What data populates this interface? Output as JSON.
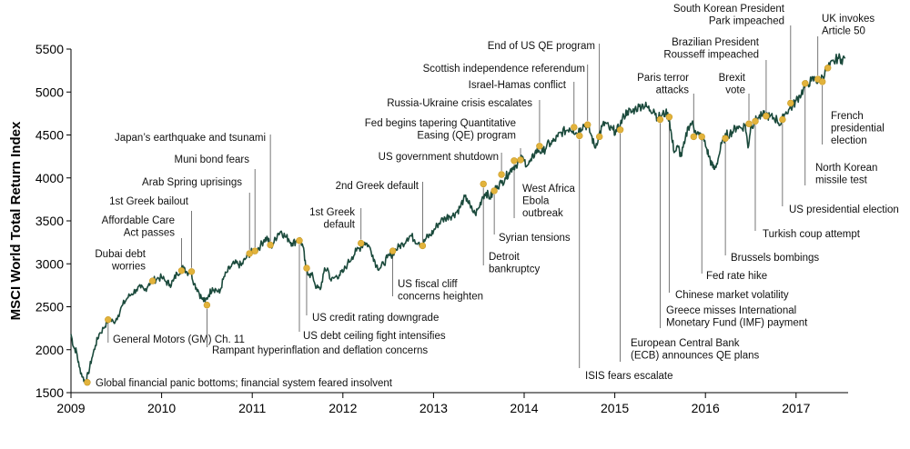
{
  "chart_data": {
    "type": "line",
    "title": "",
    "xlabel": "",
    "ylabel": "MSCI World Total Return Index",
    "xlim": [
      2009,
      2017.62
    ],
    "ylim": [
      1500,
      5500
    ],
    "x_ticks": [
      "2009",
      "2010",
      "2011",
      "2012",
      "2013",
      "2014",
      "2015",
      "2016",
      "2017"
    ],
    "y_ticks": [
      1500,
      2000,
      2500,
      3000,
      3500,
      4000,
      4500,
      5000,
      5500
    ],
    "grid": false,
    "colors": {
      "line": "#1b4a3c",
      "event_marker": "#e2b33c",
      "leader": "#555555"
    },
    "series": [
      {
        "name": "",
        "points": [
          [
            2009.0,
            2180
          ],
          [
            2009.03,
            2030
          ],
          [
            2009.06,
            1980
          ],
          [
            2009.09,
            1800
          ],
          [
            2009.13,
            1680
          ],
          [
            2009.16,
            1620
          ],
          [
            2009.19,
            1720
          ],
          [
            2009.23,
            1900
          ],
          [
            2009.27,
            2050
          ],
          [
            2009.31,
            2180
          ],
          [
            2009.36,
            2250
          ],
          [
            2009.4,
            2330
          ],
          [
            2009.43,
            2350
          ],
          [
            2009.47,
            2320
          ],
          [
            2009.52,
            2400
          ],
          [
            2009.57,
            2520
          ],
          [
            2009.62,
            2600
          ],
          [
            2009.67,
            2650
          ],
          [
            2009.72,
            2700
          ],
          [
            2009.77,
            2720
          ],
          [
            2009.81,
            2690
          ],
          [
            2009.86,
            2770
          ],
          [
            2009.9,
            2800
          ],
          [
            2009.95,
            2830
          ],
          [
            2010.0,
            2840
          ],
          [
            2010.05,
            2790
          ],
          [
            2010.09,
            2760
          ],
          [
            2010.13,
            2800
          ],
          [
            2010.17,
            2890
          ],
          [
            2010.21,
            2930
          ],
          [
            2010.25,
            2960
          ],
          [
            2010.28,
            2900
          ],
          [
            2010.32,
            2920
          ],
          [
            2010.36,
            2770
          ],
          [
            2010.4,
            2700
          ],
          [
            2010.44,
            2600
          ],
          [
            2010.48,
            2560
          ],
          [
            2010.52,
            2640
          ],
          [
            2010.56,
            2720
          ],
          [
            2010.6,
            2700
          ],
          [
            2010.64,
            2660
          ],
          [
            2010.68,
            2820
          ],
          [
            2010.72,
            2900
          ],
          [
            2010.76,
            2960
          ],
          [
            2010.8,
            3000
          ],
          [
            2010.84,
            3000
          ],
          [
            2010.88,
            2980
          ],
          [
            2010.92,
            3050
          ],
          [
            2010.96,
            3110
          ],
          [
            2011.0,
            3140
          ],
          [
            2011.05,
            3170
          ],
          [
            2011.09,
            3210
          ],
          [
            2011.13,
            3280
          ],
          [
            2011.17,
            3300
          ],
          [
            2011.2,
            3190
          ],
          [
            2011.24,
            3250
          ],
          [
            2011.28,
            3350
          ],
          [
            2011.32,
            3380
          ],
          [
            2011.36,
            3320
          ],
          [
            2011.4,
            3290
          ],
          [
            2011.44,
            3240
          ],
          [
            2011.48,
            3260
          ],
          [
            2011.52,
            3300
          ],
          [
            2011.56,
            3200
          ],
          [
            2011.59,
            2950
          ],
          [
            2011.63,
            2880
          ],
          [
            2011.67,
            2850
          ],
          [
            2011.71,
            2720
          ],
          [
            2011.75,
            2700
          ],
          [
            2011.79,
            2900
          ],
          [
            2011.83,
            2950
          ],
          [
            2011.87,
            2800
          ],
          [
            2011.92,
            2850
          ],
          [
            2011.96,
            2870
          ],
          [
            2012.0,
            2900
          ],
          [
            2012.05,
            3000
          ],
          [
            2012.1,
            3080
          ],
          [
            2012.15,
            3150
          ],
          [
            2012.2,
            3200
          ],
          [
            2012.24,
            3250
          ],
          [
            2012.28,
            3220
          ],
          [
            2012.33,
            3100
          ],
          [
            2012.37,
            2980
          ],
          [
            2012.41,
            2950
          ],
          [
            2012.45,
            3000
          ],
          [
            2012.49,
            3070
          ],
          [
            2012.53,
            3100
          ],
          [
            2012.57,
            3150
          ],
          [
            2012.62,
            3200
          ],
          [
            2012.66,
            3230
          ],
          [
            2012.71,
            3300
          ],
          [
            2012.75,
            3330
          ],
          [
            2012.79,
            3280
          ],
          [
            2012.84,
            3250
          ],
          [
            2012.88,
            3220
          ],
          [
            2012.92,
            3300
          ],
          [
            2012.96,
            3330
          ],
          [
            2013.0,
            3380
          ],
          [
            2013.04,
            3450
          ],
          [
            2013.08,
            3500
          ],
          [
            2013.13,
            3530
          ],
          [
            2013.17,
            3560
          ],
          [
            2013.21,
            3560
          ],
          [
            2013.25,
            3600
          ],
          [
            2013.29,
            3650
          ],
          [
            2013.33,
            3750
          ],
          [
            2013.37,
            3760
          ],
          [
            2013.41,
            3650
          ],
          [
            2013.46,
            3580
          ],
          [
            2013.5,
            3650
          ],
          [
            2013.54,
            3780
          ],
          [
            2013.58,
            3830
          ],
          [
            2013.62,
            3770
          ],
          [
            2013.66,
            3820
          ],
          [
            2013.7,
            3910
          ],
          [
            2013.75,
            3940
          ],
          [
            2013.79,
            4000
          ],
          [
            2013.83,
            4060
          ],
          [
            2013.87,
            4120
          ],
          [
            2013.91,
            4150
          ],
          [
            2013.96,
            4220
          ],
          [
            2014.0,
            4200
          ],
          [
            2014.04,
            4150
          ],
          [
            2014.08,
            4200
          ],
          [
            2014.12,
            4300
          ],
          [
            2014.16,
            4320
          ],
          [
            2014.21,
            4300
          ],
          [
            2014.25,
            4380
          ],
          [
            2014.29,
            4400
          ],
          [
            2014.33,
            4430
          ],
          [
            2014.37,
            4480
          ],
          [
            2014.41,
            4530
          ],
          [
            2014.46,
            4550
          ],
          [
            2014.5,
            4580
          ],
          [
            2014.54,
            4560
          ],
          [
            2014.58,
            4520
          ],
          [
            2014.62,
            4580
          ],
          [
            2014.66,
            4620
          ],
          [
            2014.7,
            4600
          ],
          [
            2014.74,
            4500
          ],
          [
            2014.78,
            4350
          ],
          [
            2014.82,
            4480
          ],
          [
            2014.86,
            4600
          ],
          [
            2014.9,
            4640
          ],
          [
            2014.94,
            4570
          ],
          [
            2014.98,
            4560
          ],
          [
            2015.02,
            4540
          ],
          [
            2015.06,
            4620
          ],
          [
            2015.1,
            4720
          ],
          [
            2015.14,
            4780
          ],
          [
            2015.18,
            4760
          ],
          [
            2015.22,
            4800
          ],
          [
            2015.27,
            4830
          ],
          [
            2015.31,
            4850
          ],
          [
            2015.35,
            4830
          ],
          [
            2015.39,
            4790
          ],
          [
            2015.43,
            4800
          ],
          [
            2015.47,
            4700
          ],
          [
            2015.52,
            4730
          ],
          [
            2015.56,
            4760
          ],
          [
            2015.6,
            4700
          ],
          [
            2015.63,
            4450
          ],
          [
            2015.66,
            4300
          ],
          [
            2015.7,
            4360
          ],
          [
            2015.73,
            4250
          ],
          [
            2015.77,
            4400
          ],
          [
            2015.81,
            4600
          ],
          [
            2015.85,
            4640
          ],
          [
            2015.89,
            4550
          ],
          [
            2015.93,
            4500
          ],
          [
            2015.97,
            4480
          ],
          [
            2016.01,
            4350
          ],
          [
            2016.04,
            4250
          ],
          [
            2016.07,
            4150
          ],
          [
            2016.1,
            4100
          ],
          [
            2016.14,
            4220
          ],
          [
            2016.18,
            4400
          ],
          [
            2016.23,
            4500
          ],
          [
            2016.27,
            4520
          ],
          [
            2016.31,
            4550
          ],
          [
            2016.35,
            4600
          ],
          [
            2016.4,
            4580
          ],
          [
            2016.44,
            4620
          ],
          [
            2016.47,
            4350
          ],
          [
            2016.5,
            4600
          ],
          [
            2016.54,
            4650
          ],
          [
            2016.58,
            4700
          ],
          [
            2016.62,
            4720
          ],
          [
            2016.67,
            4740
          ],
          [
            2016.71,
            4710
          ],
          [
            2016.75,
            4700
          ],
          [
            2016.79,
            4680
          ],
          [
            2016.83,
            4620
          ],
          [
            2016.87,
            4740
          ],
          [
            2016.92,
            4800
          ],
          [
            2016.96,
            4830
          ],
          [
            2017.0,
            4900
          ],
          [
            2017.04,
            4960
          ],
          [
            2017.08,
            5030
          ],
          [
            2017.12,
            5100
          ],
          [
            2017.17,
            5130
          ],
          [
            2017.21,
            5150
          ],
          [
            2017.25,
            5120
          ],
          [
            2017.29,
            5180
          ],
          [
            2017.33,
            5250
          ],
          [
            2017.37,
            5300
          ],
          [
            2017.42,
            5350
          ],
          [
            2017.46,
            5400
          ],
          [
            2017.5,
            5380
          ],
          [
            2017.54,
            5390
          ]
        ]
      }
    ],
    "events": [
      {
        "label": "Global financial panic bottoms; financial system feared insolvent",
        "x": 2009.18,
        "y": 1620
      },
      {
        "label": "General Motors (GM) Ch. 11",
        "x": 2009.41,
        "y": 2350
      },
      {
        "label": "Dubai debt worries",
        "x": 2009.9,
        "y": 2800
      },
      {
        "label": "Affordable Care Act passes",
        "x": 2010.22,
        "y": 2920
      },
      {
        "label": "1st Greek bailout",
        "x": 2010.33,
        "y": 2910
      },
      {
        "label": "Rampant hyperinflation and deflation concerns",
        "x": 2010.5,
        "y": 2520
      },
      {
        "label": "Arab Spring uprisings",
        "x": 2010.97,
        "y": 3120
      },
      {
        "label": "Muni bond fears",
        "x": 2011.03,
        "y": 3150
      },
      {
        "label": "Japan's earthquake and tsunami",
        "x": 2011.2,
        "y": 3220
      },
      {
        "label": "US debt ceiling fight intensifies",
        "x": 2011.52,
        "y": 3270
      },
      {
        "label": "US credit rating downgrade",
        "x": 2011.6,
        "y": 2950
      },
      {
        "label": "1st Greek default",
        "x": 2012.2,
        "y": 3240
      },
      {
        "label": "US fiscal cliff concerns heighten",
        "x": 2012.55,
        "y": 3150
      },
      {
        "label": "2nd Greek default",
        "x": 2012.88,
        "y": 3210
      },
      {
        "label": "Detroit bankruptcy",
        "x": 2013.55,
        "y": 3930
      },
      {
        "label": "Syrian tensions",
        "x": 2013.67,
        "y": 3850
      },
      {
        "label": "US government shutdown",
        "x": 2013.75,
        "y": 4040
      },
      {
        "label": "West Africa Ebola outbreak",
        "x": 2013.89,
        "y": 4200
      },
      {
        "label": "Fed begins tapering Quantitative Easing (QE) program",
        "x": 2013.96,
        "y": 4210
      },
      {
        "label": "Russia-Ukraine crisis escalates",
        "x": 2014.17,
        "y": 4370
      },
      {
        "label": "Israel-Hamas conflict",
        "x": 2014.55,
        "y": 4590
      },
      {
        "label": "ISIS fears escalate",
        "x": 2014.61,
        "y": 4490
      },
      {
        "label": "Scottish independence referendum",
        "x": 2014.7,
        "y": 4620
      },
      {
        "label": "End of US QE program",
        "x": 2014.83,
        "y": 4480
      },
      {
        "label": "European Central Bank (ECB) announces QE plans",
        "x": 2015.06,
        "y": 4560
      },
      {
        "label": "Greece misses International Monetary Fund (IMF) payment",
        "x": 2015.5,
        "y": 4680
      },
      {
        "label": "Chinese market volatility",
        "x": 2015.6,
        "y": 4710
      },
      {
        "label": "Paris terror attacks",
        "x": 2015.87,
        "y": 4480
      },
      {
        "label": "Fed rate hike",
        "x": 2015.96,
        "y": 4480
      },
      {
        "label": "Brussels bombings",
        "x": 2016.22,
        "y": 4460
      },
      {
        "label": "Brexit vote",
        "x": 2016.48,
        "y": 4630
      },
      {
        "label": "Turkish coup attempt",
        "x": 2016.55,
        "y": 4660
      },
      {
        "label": "Brazilian President Rousseff impeached",
        "x": 2016.67,
        "y": 4720
      },
      {
        "label": "US presidential election",
        "x": 2016.85,
        "y": 4680
      },
      {
        "label": "South Korean President Park impeached",
        "x": 2016.94,
        "y": 4870
      },
      {
        "label": "North Korean missile test",
        "x": 2017.1,
        "y": 5100
      },
      {
        "label": "UK invokes Article 50",
        "x": 2017.24,
        "y": 5150
      },
      {
        "label": "French presidential election",
        "x": 2017.29,
        "y": 5120
      },
      {
        "label": "",
        "x": 2017.35,
        "y": 5280
      }
    ]
  }
}
